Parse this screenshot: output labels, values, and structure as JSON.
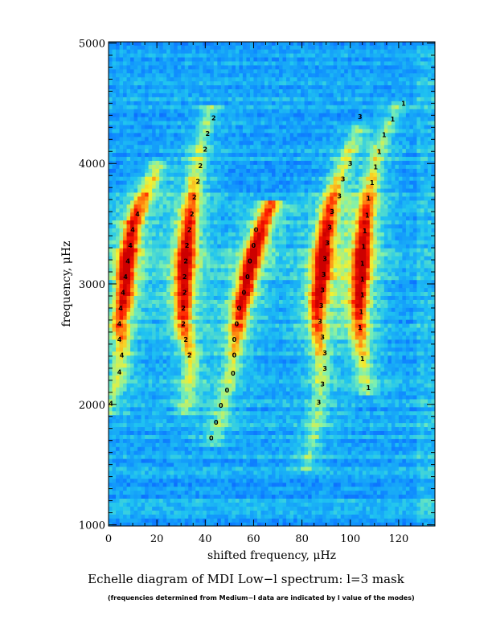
{
  "chart_data": {
    "type": "heatmap",
    "title": "Echelle diagram of MDI Low−l spectrum: l=3 mask",
    "note": "(frequencies determined from Medium−l data are indicated by  l value of the modes)",
    "xlabel": "shifted frequency, μHz",
    "ylabel": "frequency, μHz",
    "xlim": [
      0,
      135
    ],
    "ylim": [
      990,
      5010
    ],
    "x_ticks": [
      0,
      20,
      40,
      60,
      80,
      100,
      120
    ],
    "y_ticks": [
      1000,
      2000,
      3000,
      4000,
      5000
    ],
    "colormap": [
      "#0a44ff",
      "#0f8cff",
      "#20c4f0",
      "#7ef0b0",
      "#f4f030",
      "#ff8a10",
      "#ff1a00",
      "#cc0000"
    ],
    "ridges": [
      {
        "l": 4,
        "points": [
          [
            0.5,
            1960
          ],
          [
            1,
            2040
          ],
          [
            3,
            2140
          ],
          [
            4.5,
            2280
          ],
          [
            5.5,
            2440
          ],
          [
            5,
            2560
          ],
          [
            5,
            2700
          ],
          [
            6,
            2840
          ],
          [
            7,
            2960
          ],
          [
            7,
            3100
          ],
          [
            8,
            3230
          ],
          [
            9,
            3370
          ],
          [
            10,
            3500
          ],
          [
            13,
            3660
          ],
          [
            17,
            3830
          ],
          [
            20,
            3950
          ]
        ]
      },
      {
        "l": 2,
        "points": [
          [
            32,
            1980
          ],
          [
            33,
            2120
          ],
          [
            34,
            2280
          ],
          [
            34,
            2420
          ],
          [
            32,
            2560
          ],
          [
            31,
            2680
          ],
          [
            31,
            2820
          ],
          [
            31,
            2960
          ],
          [
            31.5,
            3100
          ],
          [
            32,
            3230
          ],
          [
            32.5,
            3360
          ],
          [
            33,
            3490
          ],
          [
            34,
            3620
          ],
          [
            35,
            3760
          ],
          [
            36,
            3890
          ],
          [
            37,
            4030
          ],
          [
            38,
            4160
          ],
          [
            40,
            4290
          ],
          [
            42,
            4420
          ]
        ]
      },
      {
        "l": 0,
        "points": [
          [
            44,
            1720
          ],
          [
            46,
            1860
          ],
          [
            47,
            1990
          ],
          [
            49,
            2130
          ],
          [
            51,
            2270
          ],
          [
            52,
            2420
          ],
          [
            53,
            2560
          ],
          [
            54,
            2700
          ],
          [
            55,
            2840
          ],
          [
            57,
            2980
          ],
          [
            58,
            3110
          ],
          [
            60,
            3250
          ],
          [
            62,
            3380
          ],
          [
            64,
            3510
          ],
          [
            67,
            3650
          ]
        ]
      },
      {
        "l": 3,
        "points": [
          [
            82,
            1520
          ],
          [
            84,
            1660
          ],
          [
            85.5,
            1800
          ],
          [
            86.5,
            1940
          ],
          [
            87.5,
            2080
          ],
          [
            88,
            2220
          ],
          [
            88,
            2360
          ],
          [
            87,
            2500
          ],
          [
            86.5,
            2640
          ],
          [
            86.5,
            2780
          ],
          [
            87,
            2920
          ],
          [
            88,
            3050
          ],
          [
            88.5,
            3190
          ],
          [
            89,
            3320
          ],
          [
            90,
            3450
          ],
          [
            91,
            3580
          ],
          [
            92.5,
            3710
          ],
          [
            94.5,
            3850
          ],
          [
            97,
            3990
          ],
          [
            100,
            4130
          ],
          [
            103,
            4270
          ]
        ]
      },
      {
        "l": 1,
        "points": [
          [
            107,
            2130
          ],
          [
            106,
            2270
          ],
          [
            105,
            2410
          ],
          [
            104,
            2550
          ],
          [
            103.5,
            2690
          ],
          [
            103.5,
            2840
          ],
          [
            104,
            2970
          ],
          [
            104.5,
            3110
          ],
          [
            105,
            3250
          ],
          [
            105.5,
            3390
          ],
          [
            106,
            3520
          ],
          [
            107,
            3660
          ],
          [
            108,
            3790
          ],
          [
            109.5,
            3930
          ],
          [
            111,
            4060
          ],
          [
            113,
            4200
          ],
          [
            116,
            4330
          ],
          [
            120,
            4460
          ]
        ]
      }
    ],
    "mode_labels": [
      {
        "l": "4",
        "x": 1,
        "y": 2010
      },
      {
        "l": "4",
        "x": 4.5,
        "y": 2270
      },
      {
        "l": "4",
        "x": 5.5,
        "y": 2410
      },
      {
        "l": "4",
        "x": 4.5,
        "y": 2540
      },
      {
        "l": "4",
        "x": 4.5,
        "y": 2670
      },
      {
        "l": "4",
        "x": 5,
        "y": 2800
      },
      {
        "l": "4",
        "x": 6,
        "y": 2930
      },
      {
        "l": "4",
        "x": 7,
        "y": 3060
      },
      {
        "l": "4",
        "x": 8,
        "y": 3190
      },
      {
        "l": "4",
        "x": 9,
        "y": 3320
      },
      {
        "l": "4",
        "x": 10,
        "y": 3450
      },
      {
        "l": "4",
        "x": 12,
        "y": 3580
      },
      {
        "l": "2",
        "x": 33.5,
        "y": 2410
      },
      {
        "l": "2",
        "x": 32,
        "y": 2540
      },
      {
        "l": "2",
        "x": 31,
        "y": 2670
      },
      {
        "l": "2",
        "x": 31,
        "y": 2800
      },
      {
        "l": "2",
        "x": 31.5,
        "y": 2930
      },
      {
        "l": "2",
        "x": 31.5,
        "y": 3060
      },
      {
        "l": "2",
        "x": 32,
        "y": 3190
      },
      {
        "l": "2",
        "x": 32.5,
        "y": 3320
      },
      {
        "l": "2",
        "x": 33.5,
        "y": 3450
      },
      {
        "l": "2",
        "x": 34.5,
        "y": 3580
      },
      {
        "l": "2",
        "x": 35.5,
        "y": 3720
      },
      {
        "l": "2",
        "x": 37,
        "y": 3850
      },
      {
        "l": "2",
        "x": 38,
        "y": 3980
      },
      {
        "l": "2",
        "x": 40,
        "y": 4120
      },
      {
        "l": "2",
        "x": 41,
        "y": 4250
      },
      {
        "l": "2",
        "x": 43.5,
        "y": 4380
      },
      {
        "l": "0",
        "x": 42.5,
        "y": 1720
      },
      {
        "l": "0",
        "x": 44.5,
        "y": 1850
      },
      {
        "l": "0",
        "x": 46.5,
        "y": 1990
      },
      {
        "l": "0",
        "x": 49,
        "y": 2120
      },
      {
        "l": "0",
        "x": 51.5,
        "y": 2260
      },
      {
        "l": "0",
        "x": 52,
        "y": 2410
      },
      {
        "l": "0",
        "x": 52,
        "y": 2540
      },
      {
        "l": "0",
        "x": 53,
        "y": 2670
      },
      {
        "l": "0",
        "x": 54,
        "y": 2800
      },
      {
        "l": "0",
        "x": 56,
        "y": 2930
      },
      {
        "l": "0",
        "x": 57.5,
        "y": 3060
      },
      {
        "l": "0",
        "x": 58.5,
        "y": 3190
      },
      {
        "l": "0",
        "x": 60,
        "y": 3320
      },
      {
        "l": "0",
        "x": 61,
        "y": 3450
      },
      {
        "l": "3",
        "x": 87,
        "y": 2020
      },
      {
        "l": "3",
        "x": 88.5,
        "y": 2170
      },
      {
        "l": "3",
        "x": 89.5,
        "y": 2300
      },
      {
        "l": "3",
        "x": 89.5,
        "y": 2430
      },
      {
        "l": "3",
        "x": 88.5,
        "y": 2560
      },
      {
        "l": "3",
        "x": 87.5,
        "y": 2690
      },
      {
        "l": "3",
        "x": 88,
        "y": 2820
      },
      {
        "l": "3",
        "x": 88.5,
        "y": 2950
      },
      {
        "l": "3",
        "x": 89,
        "y": 3080
      },
      {
        "l": "3",
        "x": 89.5,
        "y": 3210
      },
      {
        "l": "3",
        "x": 90.5,
        "y": 3340
      },
      {
        "l": "3",
        "x": 91.5,
        "y": 3470
      },
      {
        "l": "3",
        "x": 92.5,
        "y": 3600
      },
      {
        "l": "3",
        "x": 95.5,
        "y": 3730
      },
      {
        "l": "3",
        "x": 97,
        "y": 3870
      },
      {
        "l": "3",
        "x": 100,
        "y": 4000
      },
      {
        "l": "3",
        "x": 104,
        "y": 4390
      },
      {
        "l": "1",
        "x": 107.5,
        "y": 2140
      },
      {
        "l": "1",
        "x": 105,
        "y": 2380
      },
      {
        "l": "1",
        "x": 104,
        "y": 2640
      },
      {
        "l": "1",
        "x": 104.5,
        "y": 2770
      },
      {
        "l": "1",
        "x": 105,
        "y": 2910
      },
      {
        "l": "1",
        "x": 105,
        "y": 3040
      },
      {
        "l": "1",
        "x": 105,
        "y": 3170
      },
      {
        "l": "1",
        "x": 105.5,
        "y": 3310
      },
      {
        "l": "1",
        "x": 106,
        "y": 3440
      },
      {
        "l": "1",
        "x": 107,
        "y": 3570
      },
      {
        "l": "1",
        "x": 107.5,
        "y": 3710
      },
      {
        "l": "1",
        "x": 109,
        "y": 3840
      },
      {
        "l": "1",
        "x": 110.5,
        "y": 3970
      },
      {
        "l": "1",
        "x": 112,
        "y": 4100
      },
      {
        "l": "1",
        "x": 114,
        "y": 4240
      },
      {
        "l": "1",
        "x": 117.5,
        "y": 4370
      },
      {
        "l": "1",
        "x": 122,
        "y": 4500
      }
    ]
  }
}
